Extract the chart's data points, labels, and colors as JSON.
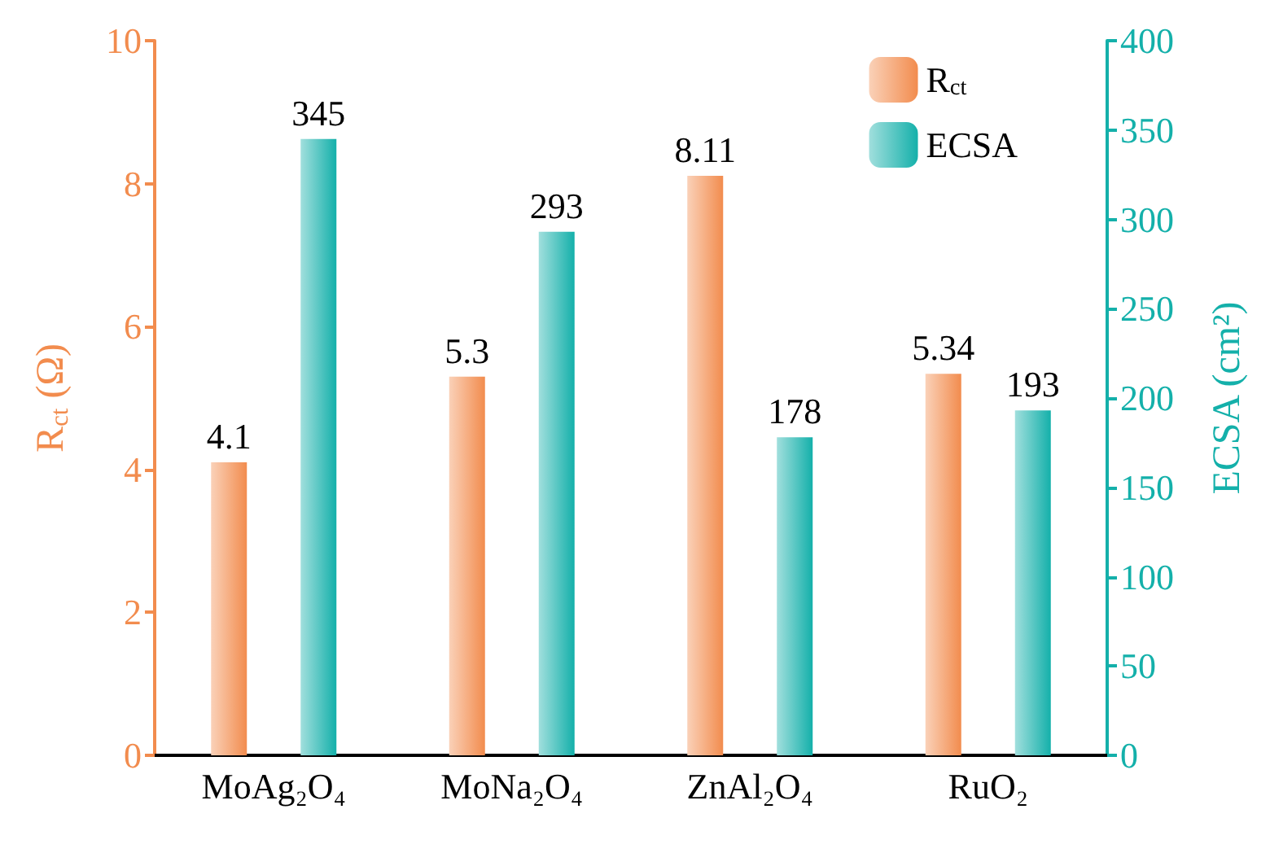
{
  "chart_data": {
    "type": "bar",
    "categories": [
      "MoAg₂O₄",
      "MoNa₂O₄",
      "ZnAl₂O₄",
      "RuO₂"
    ],
    "ylabel": "R$_{ct}$ (Ω)",
    "y2label": "ECSA (cm²)",
    "ylim": [
      0,
      10
    ],
    "yticks": [
      0,
      2,
      4,
      6,
      8,
      10
    ],
    "y2lim": [
      0,
      400
    ],
    "y2ticks": [
      0,
      50,
      100,
      150,
      200,
      250,
      300,
      350,
      400
    ],
    "series": [
      {
        "name": "R$_{ct}$",
        "color": "#f28c4e",
        "values": [
          4.1,
          5.3,
          8.11,
          5.34
        ]
      },
      {
        "name": "ECSA",
        "color": "#14b0aa",
        "values": [
          345,
          293,
          178,
          193
        ],
        "axis": "y2"
      }
    ],
    "data_labels": true,
    "legend": "top right",
    "grid": false
  }
}
